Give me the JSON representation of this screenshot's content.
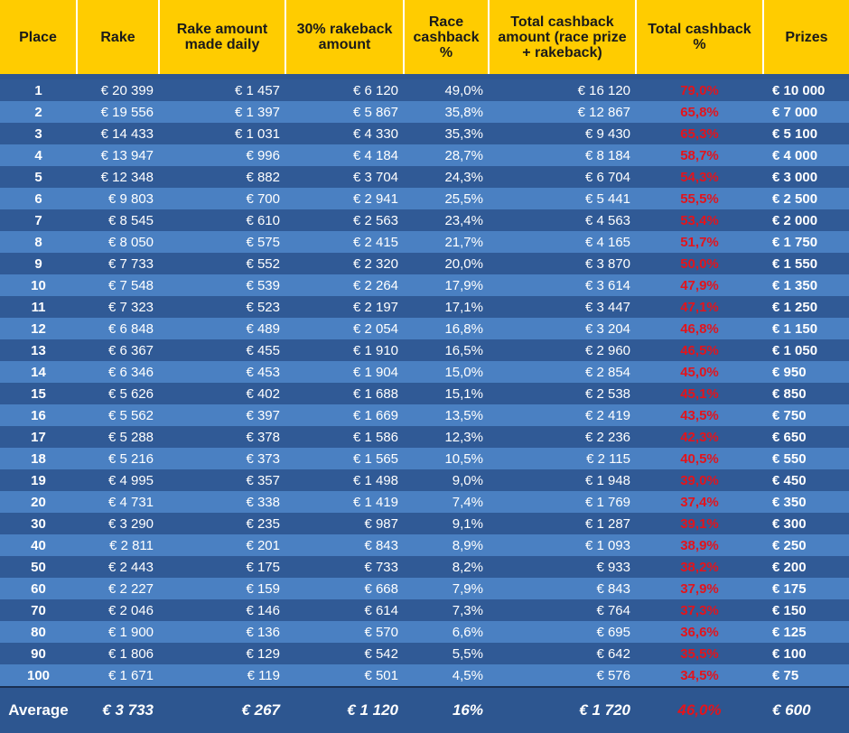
{
  "headers": {
    "place": "Place",
    "rake": "Rake",
    "rake_daily": "Rake amount made daily",
    "rakeback": "30% rakeback amount",
    "race_cashback": "Race cashback %",
    "total_cashback_amount": "Total cashback amount (race prize + rakeback)",
    "total_cashback_pct": "Total cashback %",
    "prizes": "Prizes"
  },
  "rows": [
    {
      "place": "1",
      "rake": "€ 20 399",
      "daily": "€ 1 457",
      "rakeback": "€ 6 120",
      "race": "49,0%",
      "total": "€ 16 120",
      "pct": "79,0%",
      "prize": "€ 10 000"
    },
    {
      "place": "2",
      "rake": "€ 19 556",
      "daily": "€ 1 397",
      "rakeback": "€ 5 867",
      "race": "35,8%",
      "total": "€ 12 867",
      "pct": "65,8%",
      "prize": "€ 7 000"
    },
    {
      "place": "3",
      "rake": "€ 14 433",
      "daily": "€ 1 031",
      "rakeback": "€ 4 330",
      "race": "35,3%",
      "total": "€ 9 430",
      "pct": "65,3%",
      "prize": "€ 5 100"
    },
    {
      "place": "4",
      "rake": "€ 13 947",
      "daily": "€ 996",
      "rakeback": "€ 4 184",
      "race": "28,7%",
      "total": "€ 8 184",
      "pct": "58,7%",
      "prize": "€ 4 000"
    },
    {
      "place": "5",
      "rake": "€ 12 348",
      "daily": "€ 882",
      "rakeback": "€ 3 704",
      "race": "24,3%",
      "total": "€ 6 704",
      "pct": "54,3%",
      "prize": "€ 3 000"
    },
    {
      "place": "6",
      "rake": "€ 9 803",
      "daily": "€ 700",
      "rakeback": "€ 2 941",
      "race": "25,5%",
      "total": "€ 5 441",
      "pct": "55,5%",
      "prize": "€ 2 500"
    },
    {
      "place": "7",
      "rake": "€ 8 545",
      "daily": "€ 610",
      "rakeback": "€ 2 563",
      "race": "23,4%",
      "total": "€ 4 563",
      "pct": "53,4%",
      "prize": "€ 2 000"
    },
    {
      "place": "8",
      "rake": "€ 8 050",
      "daily": "€ 575",
      "rakeback": "€ 2 415",
      "race": "21,7%",
      "total": "€ 4 165",
      "pct": "51,7%",
      "prize": "€ 1 750"
    },
    {
      "place": "9",
      "rake": "€ 7 733",
      "daily": "€ 552",
      "rakeback": "€ 2 320",
      "race": "20,0%",
      "total": "€ 3 870",
      "pct": "50,0%",
      "prize": "€ 1 550"
    },
    {
      "place": "10",
      "rake": "€ 7 548",
      "daily": "€ 539",
      "rakeback": "€ 2 264",
      "race": "17,9%",
      "total": "€ 3 614",
      "pct": "47,9%",
      "prize": "€ 1 350"
    },
    {
      "place": "11",
      "rake": "€ 7 323",
      "daily": "€ 523",
      "rakeback": "€ 2 197",
      "race": "17,1%",
      "total": "€ 3 447",
      "pct": "47,1%",
      "prize": "€ 1 250"
    },
    {
      "place": "12",
      "rake": "€ 6 848",
      "daily": "€ 489",
      "rakeback": "€ 2 054",
      "race": "16,8%",
      "total": "€ 3 204",
      "pct": "46,8%",
      "prize": "€ 1 150"
    },
    {
      "place": "13",
      "rake": "€ 6 367",
      "daily": "€ 455",
      "rakeback": "€ 1 910",
      "race": "16,5%",
      "total": "€ 2 960",
      "pct": "46,5%",
      "prize": "€ 1 050"
    },
    {
      "place": "14",
      "rake": "€ 6 346",
      "daily": "€ 453",
      "rakeback": "€ 1 904",
      "race": "15,0%",
      "total": "€ 2 854",
      "pct": "45,0%",
      "prize": "€ 950"
    },
    {
      "place": "15",
      "rake": "€ 5 626",
      "daily": "€ 402",
      "rakeback": "€ 1 688",
      "race": "15,1%",
      "total": "€ 2 538",
      "pct": "45,1%",
      "prize": "€ 850"
    },
    {
      "place": "16",
      "rake": "€ 5 562",
      "daily": "€ 397",
      "rakeback": "€ 1 669",
      "race": "13,5%",
      "total": "€ 2 419",
      "pct": "43,5%",
      "prize": "€ 750"
    },
    {
      "place": "17",
      "rake": "€ 5 288",
      "daily": "€ 378",
      "rakeback": "€ 1 586",
      "race": "12,3%",
      "total": "€ 2 236",
      "pct": "42,3%",
      "prize": "€ 650"
    },
    {
      "place": "18",
      "rake": "€ 5 216",
      "daily": "€ 373",
      "rakeback": "€ 1 565",
      "race": "10,5%",
      "total": "€ 2 115",
      "pct": "40,5%",
      "prize": "€ 550"
    },
    {
      "place": "19",
      "rake": "€ 4 995",
      "daily": "€ 357",
      "rakeback": "€ 1 498",
      "race": "9,0%",
      "total": "€ 1 948",
      "pct": "39,0%",
      "prize": "€ 450"
    },
    {
      "place": "20",
      "rake": "€ 4 731",
      "daily": "€ 338",
      "rakeback": "€ 1 419",
      "race": "7,4%",
      "total": "€ 1 769",
      "pct": "37,4%",
      "prize": "€ 350"
    },
    {
      "place": "30",
      "rake": "€ 3 290",
      "daily": "€ 235",
      "rakeback": "€ 987",
      "race": "9,1%",
      "total": "€ 1 287",
      "pct": "39,1%",
      "prize": "€ 300"
    },
    {
      "place": "40",
      "rake": "€ 2 811",
      "daily": "€ 201",
      "rakeback": "€ 843",
      "race": "8,9%",
      "total": "€ 1 093",
      "pct": "38,9%",
      "prize": "€ 250"
    },
    {
      "place": "50",
      "rake": "€ 2 443",
      "daily": "€ 175",
      "rakeback": "€ 733",
      "race": "8,2%",
      "total": "€ 933",
      "pct": "38,2%",
      "prize": "€ 200"
    },
    {
      "place": "60",
      "rake": "€ 2 227",
      "daily": "€ 159",
      "rakeback": "€ 668",
      "race": "7,9%",
      "total": "€ 843",
      "pct": "37,9%",
      "prize": "€ 175"
    },
    {
      "place": "70",
      "rake": "€ 2 046",
      "daily": "€ 146",
      "rakeback": "€ 614",
      "race": "7,3%",
      "total": "€ 764",
      "pct": "37,3%",
      "prize": "€ 150"
    },
    {
      "place": "80",
      "rake": "€ 1 900",
      "daily": "€ 136",
      "rakeback": "€ 570",
      "race": "6,6%",
      "total": "€ 695",
      "pct": "36,6%",
      "prize": "€ 125"
    },
    {
      "place": "90",
      "rake": "€ 1 806",
      "daily": "€ 129",
      "rakeback": "€ 542",
      "race": "5,5%",
      "total": "€ 642",
      "pct": "35,5%",
      "prize": "€ 100"
    },
    {
      "place": "100",
      "rake": "€ 1 671",
      "daily": "€ 119",
      "rakeback": "€ 501",
      "race": "4,5%",
      "total": "€ 576",
      "pct": "34,5%",
      "prize": "€ 75"
    }
  ],
  "average": {
    "label": "Average",
    "rake": "€ 3 733",
    "daily": "€ 267",
    "rakeback": "€ 1 120",
    "race": "16%",
    "total": "€ 1 720",
    "pct": "46,0%",
    "prize": "€ 600"
  },
  "colors": {
    "header_bg": "#ffcc00",
    "row_dark": "#305a96",
    "row_light": "#4a80c2",
    "highlight_red": "#e3141c"
  }
}
